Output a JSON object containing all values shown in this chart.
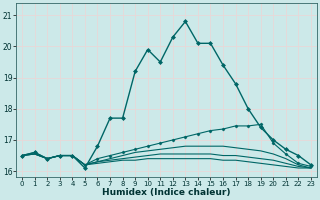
{
  "title": "",
  "xlabel": "Humidex (Indice chaleur)",
  "ylabel": "",
  "bg_color": "#cce9e9",
  "grid_color": "#e8d8d8",
  "line_color": "#006666",
  "ylim": [
    15.8,
    21.4
  ],
  "xlim": [
    -0.5,
    23.5
  ],
  "yticks": [
    16,
    17,
    18,
    19,
    20,
    21
  ],
  "xticks": [
    0,
    1,
    2,
    3,
    4,
    5,
    6,
    7,
    8,
    9,
    10,
    11,
    12,
    13,
    14,
    15,
    16,
    17,
    18,
    19,
    20,
    21,
    22,
    23
  ],
  "series": [
    {
      "x": [
        0,
        1,
        2,
        3,
        4,
        5,
        6,
        7,
        8,
        9,
        10,
        11,
        12,
        13,
        14,
        15,
        16,
        17,
        18,
        19,
        20,
        21,
        22,
        23
      ],
      "y": [
        16.5,
        16.6,
        16.4,
        16.5,
        16.5,
        16.1,
        16.8,
        17.7,
        17.7,
        19.2,
        19.9,
        19.5,
        20.3,
        20.8,
        20.1,
        20.1,
        19.4,
        18.8,
        18.0,
        17.4,
        17.0,
        16.7,
        16.5,
        16.2
      ],
      "marker": "D",
      "markersize": 2.0,
      "linewidth": 1.0,
      "linestyle": "-",
      "has_marker": true
    },
    {
      "x": [
        0,
        1,
        2,
        3,
        4,
        5,
        6,
        7,
        8,
        9,
        10,
        11,
        12,
        13,
        14,
        15,
        16,
        17,
        18,
        19,
        20,
        21,
        22,
        23
      ],
      "y": [
        16.5,
        16.6,
        16.4,
        16.5,
        16.5,
        16.2,
        16.4,
        16.5,
        16.6,
        16.7,
        16.8,
        16.9,
        17.0,
        17.1,
        17.2,
        17.3,
        17.35,
        17.45,
        17.45,
        17.5,
        16.9,
        16.55,
        16.25,
        16.15
      ],
      "marker": "D",
      "markersize": 1.5,
      "linewidth": 0.8,
      "linestyle": "-",
      "has_marker": true
    },
    {
      "x": [
        0,
        1,
        2,
        3,
        4,
        5,
        6,
        7,
        8,
        9,
        10,
        11,
        12,
        13,
        14,
        15,
        16,
        17,
        18,
        19,
        20,
        21,
        22,
        23
      ],
      "y": [
        16.5,
        16.55,
        16.4,
        16.5,
        16.5,
        16.2,
        16.3,
        16.4,
        16.5,
        16.6,
        16.65,
        16.7,
        16.75,
        16.8,
        16.8,
        16.8,
        16.8,
        16.75,
        16.7,
        16.65,
        16.55,
        16.4,
        16.2,
        16.1
      ],
      "marker": null,
      "markersize": 0,
      "linewidth": 0.8,
      "linestyle": "-",
      "has_marker": false
    },
    {
      "x": [
        0,
        1,
        2,
        3,
        4,
        5,
        6,
        7,
        8,
        9,
        10,
        11,
        12,
        13,
        14,
        15,
        16,
        17,
        18,
        19,
        20,
        21,
        22,
        23
      ],
      "y": [
        16.5,
        16.55,
        16.4,
        16.5,
        16.5,
        16.2,
        16.3,
        16.35,
        16.4,
        16.45,
        16.5,
        16.55,
        16.55,
        16.55,
        16.55,
        16.55,
        16.5,
        16.5,
        16.45,
        16.4,
        16.35,
        16.25,
        16.15,
        16.1
      ],
      "marker": null,
      "markersize": 0,
      "linewidth": 0.8,
      "linestyle": "-",
      "has_marker": false
    },
    {
      "x": [
        0,
        1,
        2,
        3,
        4,
        5,
        6,
        7,
        8,
        9,
        10,
        11,
        12,
        13,
        14,
        15,
        16,
        17,
        18,
        19,
        20,
        21,
        22,
        23
      ],
      "y": [
        16.5,
        16.55,
        16.4,
        16.5,
        16.5,
        16.2,
        16.25,
        16.3,
        16.35,
        16.35,
        16.4,
        16.4,
        16.4,
        16.4,
        16.4,
        16.4,
        16.35,
        16.35,
        16.3,
        16.25,
        16.2,
        16.15,
        16.1,
        16.1
      ],
      "marker": null,
      "markersize": 0,
      "linewidth": 0.8,
      "linestyle": "-",
      "has_marker": false
    }
  ]
}
